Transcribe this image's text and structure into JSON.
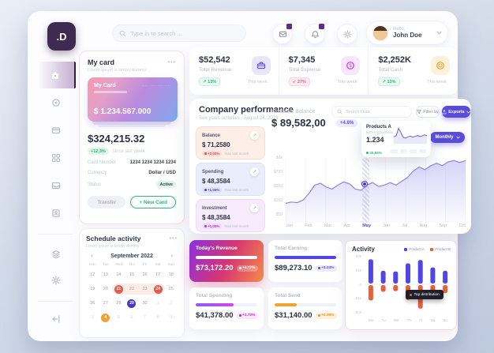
{
  "app": {
    "logo_text": ".D"
  },
  "header": {
    "search_placeholder": "Type in to search ...",
    "greeting": "Hello,",
    "user_name": "John Doe",
    "icons": [
      "messages-icon",
      "notifications-icon",
      "settings-icon",
      "chevron-down-icon"
    ]
  },
  "sidebar": {
    "icons": [
      "home-icon",
      "target-icon",
      "wallet-icon",
      "apps-icon",
      "inbox-icon",
      "profile-icon",
      "layers-icon",
      "settings-icon",
      "logout-icon"
    ]
  },
  "my_card": {
    "title": "My card",
    "subtitle": "Lorem Ipsum is simply dummy",
    "card_label": "My Card",
    "card_number_masked": "···· ···· ···· ····",
    "card_balance": "$ 1.234.567.000",
    "balance": "$324,215.32",
    "change_badge": "+12,3%",
    "change_note": "since last week",
    "rows": [
      {
        "label": "Card Number",
        "value": "1234 1234 1234 1234"
      },
      {
        "label": "Currency",
        "value": "Dollar / USD"
      },
      {
        "label": "Status",
        "value": "Active"
      }
    ],
    "transfer_label": "Transfer",
    "new_card_label": "+ New Card"
  },
  "schedule": {
    "title": "Schedule activity",
    "subtitle": "Lorem Ipsum is simply dummy",
    "month_label": "September 2022",
    "prev_arrow": "‹",
    "next_arrow": "›",
    "weekdays": [
      "Mon",
      "Tue",
      "Wed",
      "Thu",
      "Fri",
      "Sat",
      "Sun"
    ],
    "weeks": [
      [
        {
          "d": "12"
        },
        {
          "d": "13"
        },
        {
          "d": "14"
        },
        {
          "d": "15"
        },
        {
          "d": "16"
        },
        {
          "d": "17"
        },
        {
          "d": "18"
        }
      ],
      [
        {
          "d": "19"
        },
        {
          "d": "20"
        },
        {
          "d": "21",
          "mark": "red",
          "band": true
        },
        {
          "d": "22",
          "band": true
        },
        {
          "d": "23",
          "band": true
        },
        {
          "d": "24",
          "mark": "red",
          "band": true
        },
        {
          "d": "25"
        }
      ],
      [
        {
          "d": "26"
        },
        {
          "d": "27"
        },
        {
          "d": "28"
        },
        {
          "d": "29",
          "mark": "indigo"
        },
        {
          "d": "30"
        },
        {
          "d": "1",
          "muted": true
        },
        {
          "d": "2",
          "muted": true
        }
      ],
      [
        {
          "d": "3",
          "muted": true
        },
        {
          "d": "4",
          "mark": "orange"
        },
        {
          "d": "5",
          "muted": true
        },
        {
          "d": "6",
          "muted": true
        },
        {
          "d": "7",
          "muted": true
        },
        {
          "d": "8",
          "muted": true
        },
        {
          "d": "9",
          "muted": true
        }
      ]
    ]
  },
  "stats": {
    "cards": [
      {
        "value": "$52,542",
        "label": "Total Revenue",
        "badge": "13%",
        "trend": "up",
        "period": "This week",
        "icon": "briefcase-icon"
      },
      {
        "value": "$7,345",
        "label": "Total Expense",
        "badge": "27%",
        "trend": "down",
        "period": "This week",
        "icon": "dollar-coin-icon"
      },
      {
        "value": "$2,252K",
        "label": "Total Cash",
        "badge": "13%",
        "trend": "up",
        "period": "This week",
        "icon": "coin-icon"
      }
    ]
  },
  "performance": {
    "title": "Company performance",
    "subtitle": "See yours activities - August 24, 2023",
    "search_placeholder": "Search Data",
    "filter_label": "Filter by",
    "exports_label": "Exports",
    "monthly_label": "Monthly",
    "available_label": "Available Balance",
    "available_value": "$ 89,582,00",
    "available_badge": "+4.8%",
    "mini_cards": [
      {
        "label": "Balance",
        "value": "$ 71,2580",
        "badge": "+2,05%",
        "note": "than last month"
      },
      {
        "label": "Spending",
        "value": "$ 48,3584",
        "badge": "+1,05%",
        "note": "than last month"
      },
      {
        "label": "Investment",
        "value": "$ 48,3584",
        "badge": "+1,05%",
        "note": "than last month"
      }
    ],
    "tooltip": {
      "title": "Products A",
      "subtitle": "60% impressions",
      "value": "1.234",
      "badge": "25,84%"
    }
  },
  "earnings": {
    "cards": [
      {
        "title": "Today's Revenue",
        "value": "$73,172.20",
        "badge": "+4.17%",
        "progress": 100
      },
      {
        "title": "Total Earning",
        "value": "$89,273.10",
        "badge": "+3.24%",
        "progress": 100
      },
      {
        "title": "Total Spending",
        "value": "$41,378.00",
        "badge": "+1.72%",
        "progress": 62
      },
      {
        "title": "Total Send",
        "value": "$31,140.00",
        "badge": "+0.38%",
        "progress": 36
      }
    ]
  },
  "activity": {
    "title": "Activity",
    "tooltip": "Top distribution"
  },
  "chart_data": [
    {
      "id": "available-balance-trend",
      "type": "area",
      "title": "Available Balance",
      "x": [
        "Jan",
        "Feb",
        "Mar",
        "Apr",
        "May",
        "Jun",
        "Jul",
        "Aug",
        "Sep",
        "Oct"
      ],
      "highlight_x": "May",
      "yticks": [
        "$1k",
        "$700",
        "$500",
        "$100",
        "$50"
      ],
      "series": [
        {
          "name": "Available Balance",
          "values": [
            30,
            32,
            31,
            35,
            45,
            58,
            61,
            55,
            52,
            58,
            63,
            60,
            52,
            50,
            58,
            62,
            56,
            58,
            62,
            58,
            64,
            70,
            80,
            86,
            82,
            88,
            92,
            88,
            94,
            96,
            93,
            96
          ]
        }
      ],
      "legend_position": "none",
      "grid": "vertical"
    },
    {
      "id": "products-a-sparkline",
      "type": "line",
      "values": [
        35,
        40,
        88,
        60,
        30,
        26,
        34,
        38,
        32,
        36,
        42,
        36,
        40,
        46,
        42
      ]
    },
    {
      "id": "activity-by-day",
      "type": "bar",
      "categories": [
        "Mo",
        "Tu",
        "We",
        "Th",
        "Fr",
        "Sa",
        "Su"
      ],
      "yticks": [
        "$2k",
        "$1k",
        "0",
        "$1k",
        "$2k"
      ],
      "series": [
        {
          "name": "Product A",
          "color": "#4f46e5",
          "values": [
            1.8,
            0.95,
            0.9,
            1.5,
            1.75,
            1.2,
            0.95
          ]
        },
        {
          "name": "Product B",
          "color": "#e8603c",
          "values": [
            -1.15,
            -0.5,
            -0.45,
            -1.1,
            -1.75,
            -0.6,
            -0.6
          ]
        }
      ],
      "legend_position": "top-right"
    }
  ],
  "colors": {
    "accent_purple": "#5b4bdb",
    "positive_green": "#2eb877",
    "negative_red": "#ef5d84",
    "product_a": "#4f46e5",
    "product_b": "#e8603c",
    "logo_bg": "#3f2b50"
  }
}
